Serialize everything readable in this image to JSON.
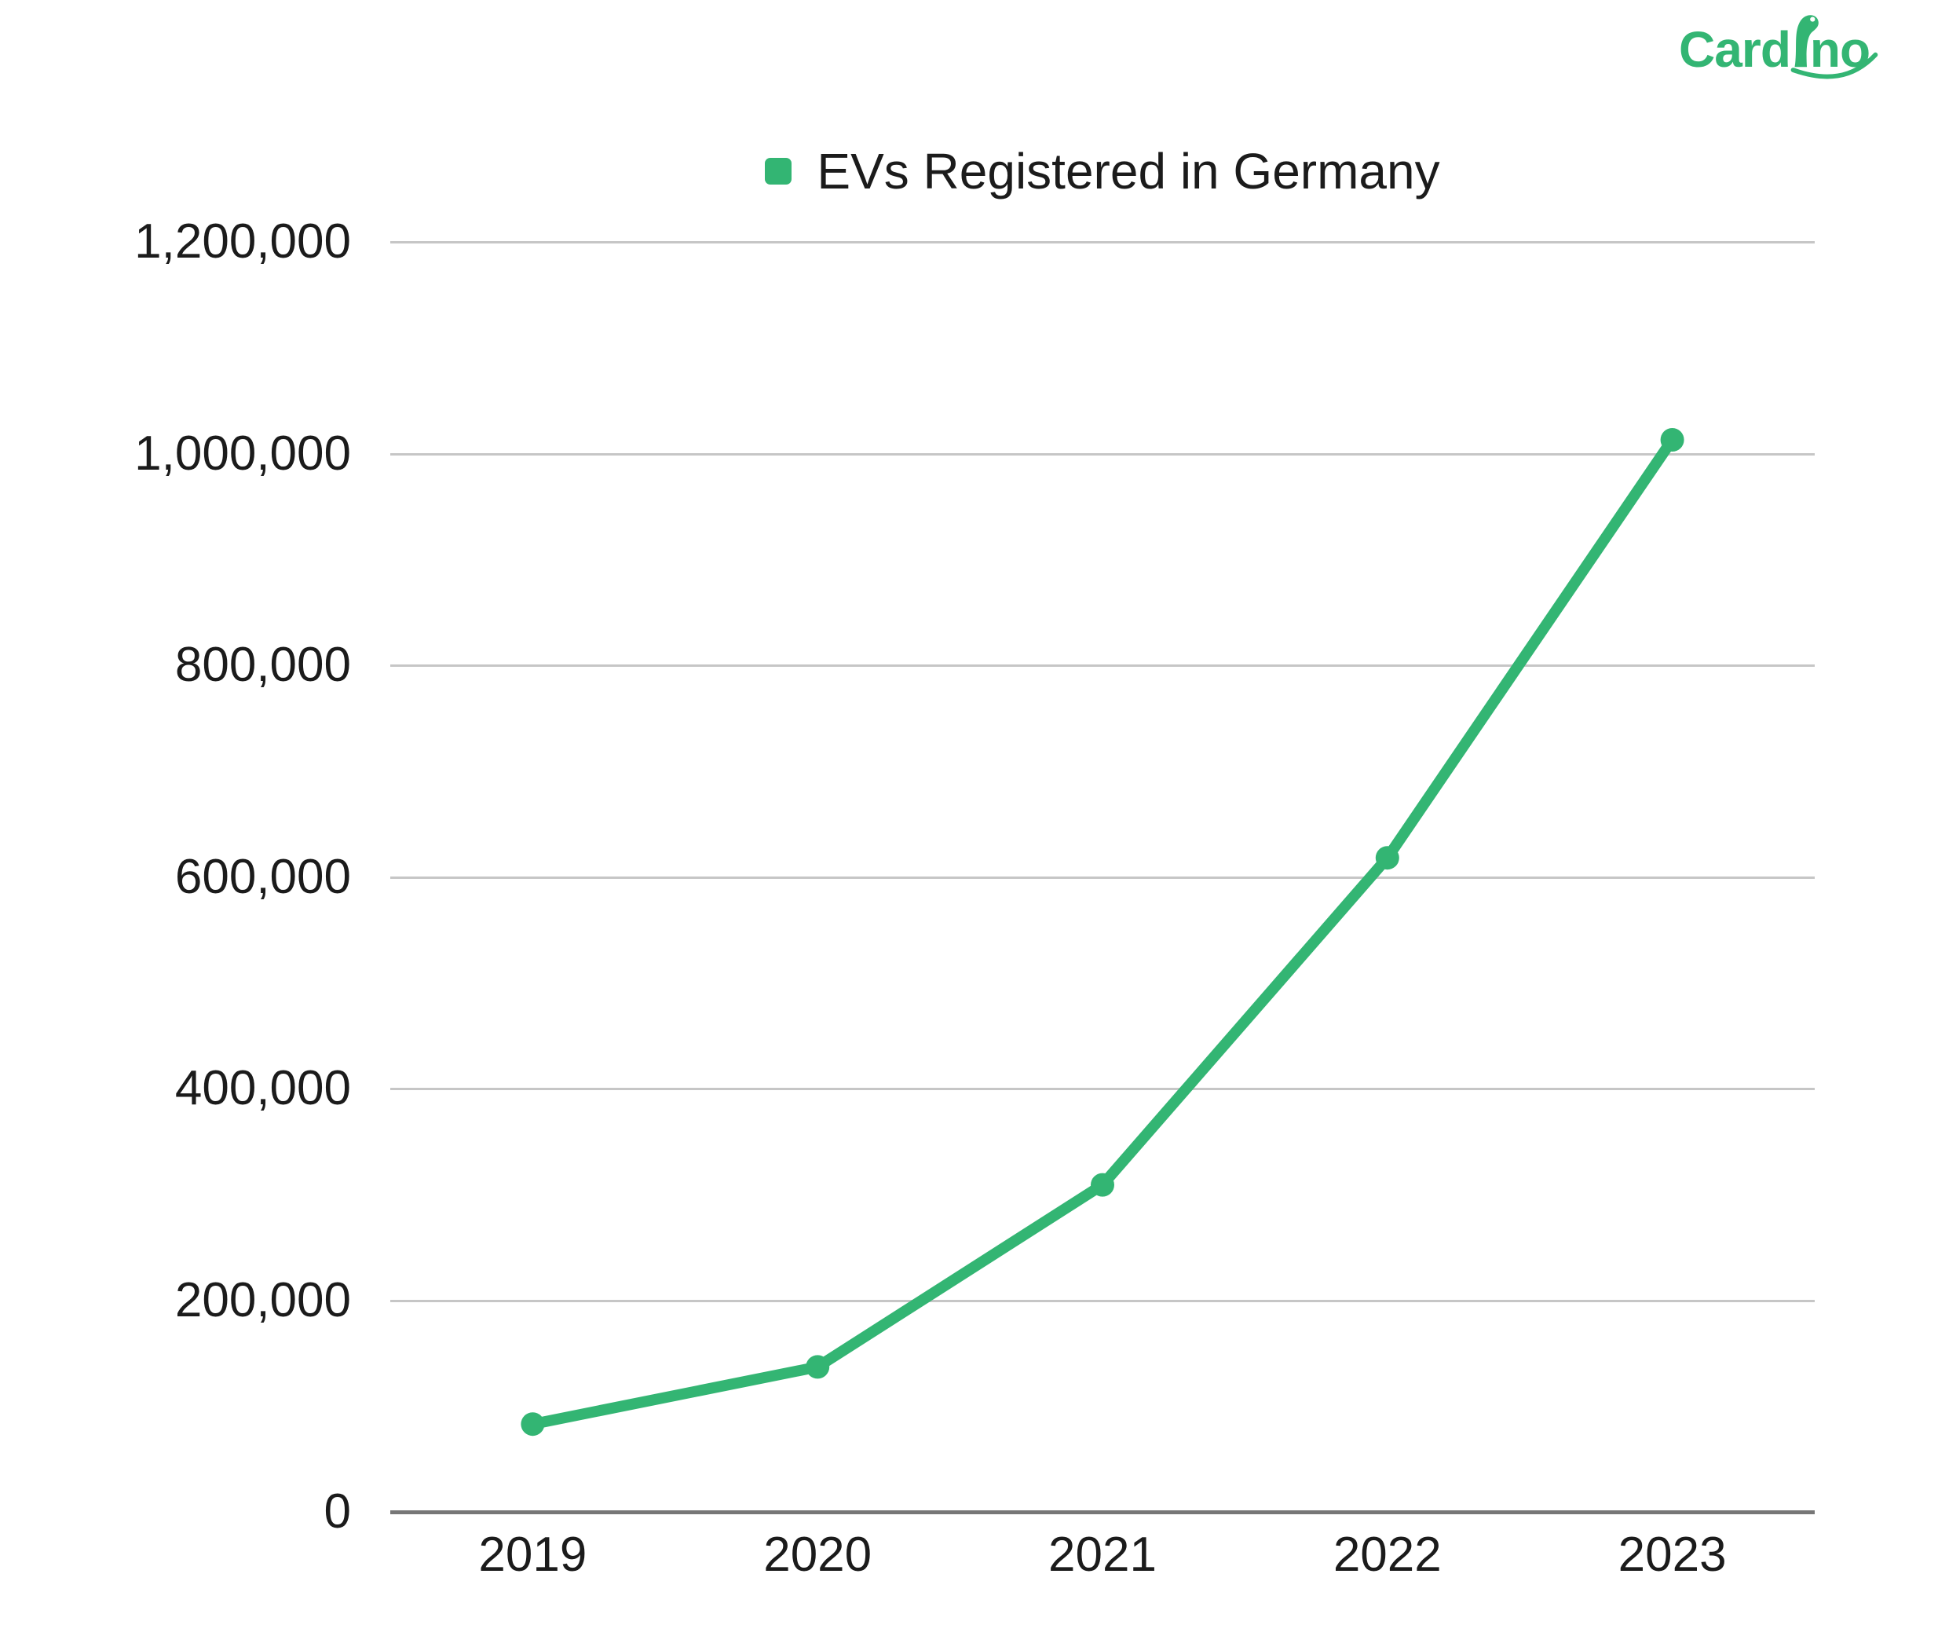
{
  "logo": {
    "full_name": "Cardino",
    "text_before_dino": "Card",
    "text_after_dino": "no"
  },
  "legend": {
    "label": "EVs Registered in Germany"
  },
  "theme": {
    "accent_green": "#33b573",
    "grid_color": "#c6c6c6",
    "axis_color": "#777777",
    "text_color": "#1b1b1b",
    "background": "#ffffff"
  },
  "chart_data": {
    "type": "line",
    "title": "EVs Registered in Germany",
    "categories": [
      "2019",
      "2020",
      "2021",
      "2022",
      "2023"
    ],
    "series": [
      {
        "name": "EVs Registered in Germany",
        "values": [
          83000,
          137000,
          309000,
          618000,
          1013000
        ]
      }
    ],
    "xlabel": "",
    "ylabel": "",
    "ylim": [
      0,
      1200000
    ],
    "ytick_step": 200000,
    "yticks": [
      {
        "value": 1200000,
        "label": "1,200,000"
      },
      {
        "value": 1000000,
        "label": "1,000,000"
      },
      {
        "value": 800000,
        "label": "800,000"
      },
      {
        "value": 600000,
        "label": "600,000"
      },
      {
        "value": 400000,
        "label": "400,000"
      },
      {
        "value": 200000,
        "label": "200,000"
      },
      {
        "value": 0,
        "label": "0"
      }
    ],
    "grid": "horizontal",
    "legend_position": "top-center",
    "marker": "circle",
    "line_width": 14,
    "marker_radius": 15
  }
}
